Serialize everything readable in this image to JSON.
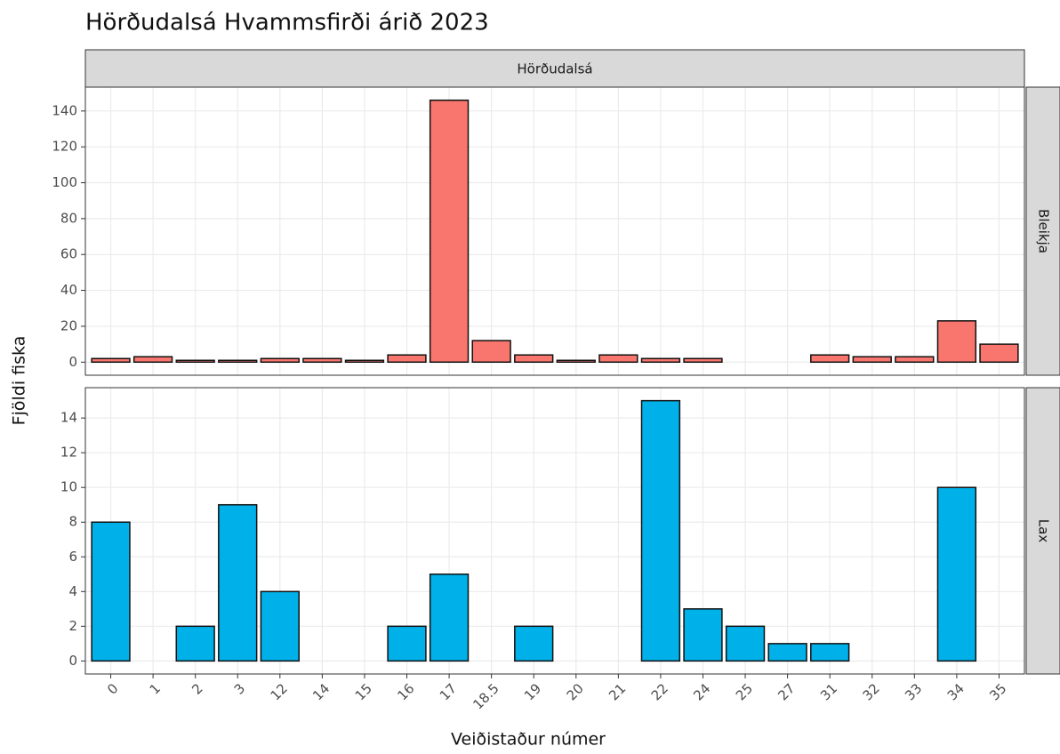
{
  "chart_data": {
    "type": "bar",
    "title": "Hörðudalsá Hvammsfirði árið 2023",
    "strip": "Hörðudalsá",
    "x_label": "Veiðistaður númer",
    "y_label": "Fjöldi fiska",
    "categories": [
      "0",
      "1",
      "2",
      "3",
      "12",
      "14",
      "15",
      "16",
      "17",
      "18.5",
      "19",
      "20",
      "21",
      "22",
      "24",
      "25",
      "27",
      "31",
      "32",
      "33",
      "34",
      "35"
    ],
    "facets": [
      {
        "name": "Bleikja",
        "color": "#f8766d",
        "values": [
          2,
          3,
          1,
          1,
          2,
          2,
          1,
          4,
          146,
          12,
          4,
          1,
          4,
          2,
          2,
          null,
          null,
          4,
          3,
          3,
          23,
          10
        ],
        "ylim": [
          -7.3,
          153.3
        ],
        "yticks": [
          0,
          20,
          40,
          60,
          80,
          100,
          120,
          140
        ]
      },
      {
        "name": "Lax",
        "color": "#00b0e8",
        "values": [
          8,
          null,
          2,
          9,
          4,
          null,
          null,
          2,
          5,
          null,
          2,
          null,
          null,
          15,
          3,
          2,
          1,
          1,
          null,
          null,
          10,
          null
        ],
        "ylim": [
          -0.75,
          15.75
        ],
        "yticks": [
          0,
          2,
          4,
          6,
          8,
          10,
          12,
          14
        ]
      }
    ],
    "grid": true
  }
}
